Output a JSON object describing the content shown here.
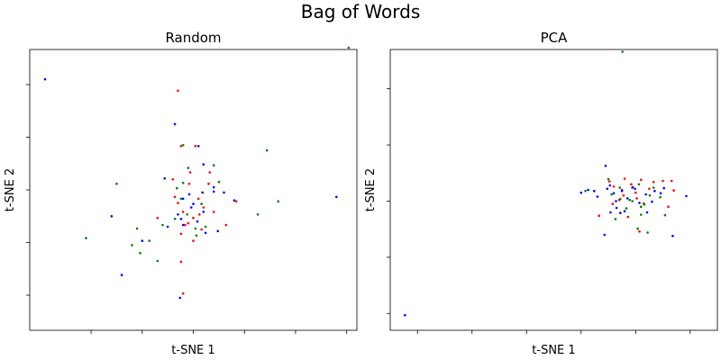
{
  "figure": {
    "title": "Bag of Words"
  },
  "chart_data": [
    {
      "type": "scatter",
      "title": "Random",
      "xlabel": "t-SNE 1",
      "ylabel": "t-SNE 2",
      "xlim": [
        -16,
        16
      ],
      "ylim": [
        -16,
        16
      ],
      "xticks": [
        -10,
        -5,
        0,
        5,
        10,
        15
      ],
      "yticks": [
        -12,
        -6,
        0,
        6,
        12
      ],
      "tick_labels_visible": false,
      "grid": false,
      "colors": {
        "red": "#ff0000",
        "green": "#008000",
        "blue": "#0000ff"
      },
      "series": [
        {
          "color": "red",
          "points": [
            [
              -1.5,
              11.3
            ],
            [
              -1.2,
              5.0
            ],
            [
              0.2,
              5.0
            ],
            [
              -0.3,
              2.0
            ],
            [
              -2.0,
              1.2
            ],
            [
              -1.8,
              -0.8
            ],
            [
              0.5,
              -1.0
            ],
            [
              1.0,
              -2.0
            ],
            [
              -1.0,
              -2.5
            ],
            [
              0.0,
              -3.2
            ],
            [
              -0.8,
              -4.0
            ],
            [
              0.8,
              -4.5
            ],
            [
              -1.2,
              -5.0
            ],
            [
              0.0,
              -5.8
            ],
            [
              2.0,
              -2.5
            ],
            [
              3.2,
              -4.0
            ],
            [
              4.2,
              -1.3
            ],
            [
              -3.5,
              -3.2
            ],
            [
              -1.2,
              -8.2
            ],
            [
              -1.0,
              -11.8
            ],
            [
              1.6,
              2.0
            ],
            [
              -0.4,
              0.7
            ],
            [
              -1.5,
              -1.5
            ],
            [
              0.6,
              -2.8
            ],
            [
              -0.5,
              -3.8
            ],
            [
              1.5,
              0.7
            ]
          ]
        },
        {
          "color": "green",
          "points": [
            [
              15.2,
              16.2
            ],
            [
              7.2,
              4.5
            ],
            [
              8.3,
              -1.3
            ],
            [
              6.3,
              -2.8
            ],
            [
              -7.5,
              0.7
            ],
            [
              -10.5,
              -5.5
            ],
            [
              -5.5,
              -4.4
            ],
            [
              -6.0,
              -6.3
            ],
            [
              -5.2,
              -7.2
            ],
            [
              -3.5,
              -8.1
            ],
            [
              -1.0,
              5.1
            ],
            [
              -0.5,
              2.5
            ],
            [
              -1.6,
              0.2
            ],
            [
              -1.2,
              -1.0
            ],
            [
              0.8,
              -1.6
            ],
            [
              -0.6,
              -2.8
            ],
            [
              0.2,
              -4.4
            ],
            [
              1.2,
              -4.2
            ],
            [
              2.5,
              0.9
            ],
            [
              2.0,
              2.8
            ],
            [
              -1.8,
              -3.3
            ],
            [
              -1.0,
              0.8
            ],
            [
              0.3,
              -5.2
            ],
            [
              -4.3,
              -5.8
            ],
            [
              -3.0,
              -4.0
            ]
          ]
        },
        {
          "color": "blue",
          "points": [
            [
              -14.5,
              12.6
            ],
            [
              -1.8,
              7.5
            ],
            [
              1.0,
              2.9
            ],
            [
              0.5,
              5.0
            ],
            [
              14.0,
              -0.8
            ],
            [
              -8.0,
              -3.0
            ],
            [
              -5.0,
              -5.8
            ],
            [
              -7.0,
              -9.7
            ],
            [
              -1.3,
              -12.3
            ],
            [
              -2.8,
              1.3
            ],
            [
              -2.5,
              -4.2
            ],
            [
              -1.0,
              -1.0
            ],
            [
              -0.2,
              -2.0
            ],
            [
              1.0,
              -2.5
            ],
            [
              2.0,
              -0.2
            ],
            [
              -1.5,
              -2.8
            ],
            [
              0.4,
              -3.6
            ],
            [
              1.2,
              -4.9
            ],
            [
              3.0,
              -0.3
            ],
            [
              4.0,
              -1.2
            ],
            [
              2.0,
              0.3
            ],
            [
              -1.0,
              -4.0
            ],
            [
              -0.4,
              -0.5
            ],
            [
              0.9,
              -0.3
            ],
            [
              2.4,
              -4.7
            ],
            [
              -1.2,
              -3.3
            ],
            [
              0.0,
              -1.6
            ]
          ]
        }
      ]
    },
    {
      "type": "scatter",
      "title": "PCA",
      "xlabel": "t-SNE 1",
      "ylabel": "t-SNE 2",
      "xlim": [
        -30,
        30
      ],
      "ylim": [
        -25,
        25
      ],
      "xticks": [
        -25,
        -15,
        -5,
        5,
        15,
        25
      ],
      "yticks": [
        -22,
        -12,
        -2,
        8,
        18
      ],
      "tick_labels_visible": false,
      "grid": false,
      "colors": {
        "red": "#ff0000",
        "green": "#008000",
        "blue": "#0000ff"
      },
      "series": [
        {
          "color": "red",
          "points": [
            [
              11.0,
              0.6
            ],
            [
              13.0,
              2.0
            ],
            [
              14.5,
              0.5
            ],
            [
              15.0,
              -0.5
            ],
            [
              16.5,
              -2.4
            ],
            [
              22.0,
              -0.1
            ],
            [
              21.0,
              -3.0
            ],
            [
              10.2,
              1.5
            ],
            [
              12.0,
              -1.8
            ],
            [
              13.6,
              -4.8
            ],
            [
              8.3,
              -4.6
            ],
            [
              15.7,
              -7.4
            ],
            [
              15.2,
              -1.5
            ],
            [
              12.5,
              0.0
            ],
            [
              17.5,
              0.2
            ],
            [
              20.0,
              1.6
            ],
            [
              21.6,
              1.6
            ],
            [
              16.0,
              1.8
            ],
            [
              10.8,
              -2.5
            ],
            [
              14.2,
              1.0
            ],
            [
              18.3,
              1.4
            ],
            [
              12.8,
              -1.0
            ]
          ]
        },
        {
          "color": "green",
          "points": [
            [
              12.6,
              24.6
            ],
            [
              10.0,
              1.9
            ],
            [
              14.4,
              -2.0
            ],
            [
              15.4,
              -6.9
            ],
            [
              17.2,
              -7.6
            ],
            [
              20.4,
              -4.5
            ],
            [
              18.3,
              0.4
            ],
            [
              16.0,
              -4.4
            ],
            [
              11.3,
              -5.2
            ],
            [
              13.3,
              -3.3
            ],
            [
              15.6,
              1.0
            ],
            [
              12.1,
              0.4
            ],
            [
              17.6,
              -1.0
            ],
            [
              16.6,
              -2.6
            ],
            [
              12.2,
              -1.6
            ],
            [
              13.9,
              -1.8
            ],
            [
              10.6,
              -0.8
            ],
            [
              5.8,
              -0.2
            ],
            [
              16.0,
              -3.0
            ],
            [
              19.5,
              -1.3
            ]
          ]
        },
        {
          "color": "blue",
          "points": [
            [
              -27.3,
              -22.3
            ],
            [
              9.5,
              4.3
            ],
            [
              6.3,
              0.0
            ],
            [
              5.0,
              -0.5
            ],
            [
              24.3,
              -1.1
            ],
            [
              21.8,
              -8.2
            ],
            [
              9.3,
              -8.0
            ],
            [
              17.1,
              -4.0
            ],
            [
              18.5,
              -0.2
            ],
            [
              20.2,
              0.3
            ],
            [
              10.3,
              0.8
            ],
            [
              11.0,
              -0.6
            ],
            [
              11.5,
              -3.2
            ],
            [
              12.2,
              -4.1
            ],
            [
              13.5,
              -1.5
            ],
            [
              14.4,
              0.4
            ],
            [
              9.8,
              0.2
            ],
            [
              12.5,
              -0.2
            ],
            [
              11.4,
              -2.0
            ],
            [
              15.7,
              -2.3
            ],
            [
              8.0,
              -1.2
            ],
            [
              7.4,
              -0.2
            ],
            [
              13.0,
              -3.8
            ],
            [
              16.9,
              -0.8
            ],
            [
              10.4,
              -4.0
            ],
            [
              19.6,
              -0.6
            ],
            [
              14.9,
              0.2
            ],
            [
              18.0,
              -2.1
            ]
          ]
        }
      ]
    }
  ]
}
